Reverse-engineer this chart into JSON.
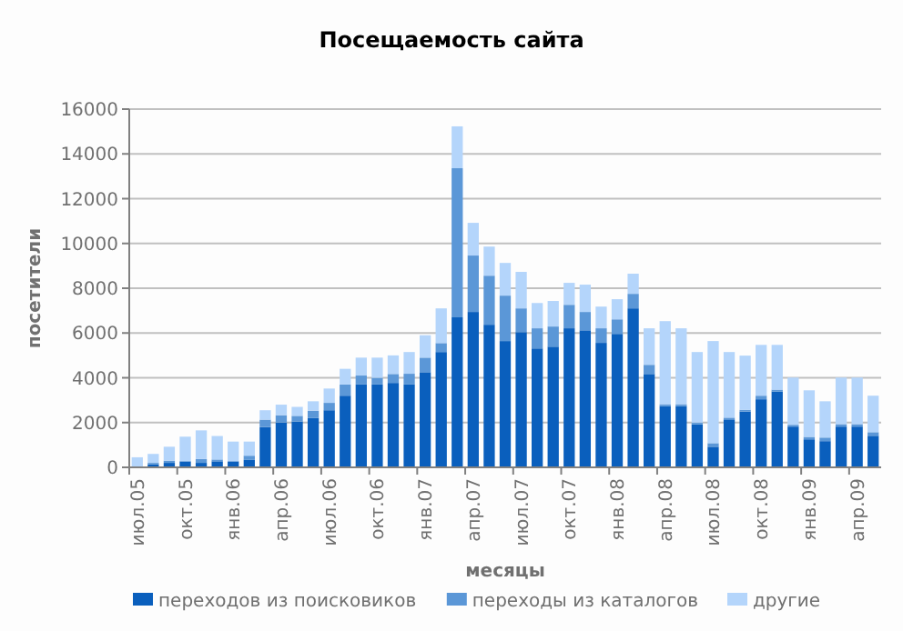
{
  "chart_data": {
    "type": "bar",
    "title": "Посещаемость сайта",
    "xlabel": "месяцы",
    "ylabel": "посетители",
    "categories": [
      "июл.05",
      null,
      null,
      "окт.05",
      null,
      null,
      "янв.06",
      null,
      null,
      "апр.06",
      null,
      null,
      "июл.06",
      null,
      null,
      "окт.06",
      null,
      null,
      "янв.07",
      null,
      null,
      "апр.07",
      null,
      null,
      "июл.07",
      null,
      null,
      "окт.07",
      null,
      null,
      "янв.08",
      null,
      null,
      "апр.08",
      null,
      null,
      "июл.08",
      null,
      null,
      "окт.08",
      null,
      null,
      "янв.09",
      null,
      null,
      "апр.09",
      null
    ],
    "stacked": true,
    "ylim": [
      0,
      16000
    ],
    "yticks": [
      0,
      2000,
      4000,
      6000,
      8000,
      10000,
      12000,
      14000,
      16000
    ],
    "grid": "y",
    "legend": "bottom",
    "series": [
      {
        "name": "переходов из поисковиков",
        "color": "#0a5fbd",
        "values": [
          0,
          130,
          200,
          270,
          200,
          270,
          270,
          330,
          1800,
          2000,
          2050,
          2200,
          2550,
          3200,
          3700,
          3700,
          3770,
          3700,
          4250,
          5150,
          6700,
          6940,
          6370,
          5640,
          6040,
          5310,
          5390,
          6210,
          6120,
          5560,
          5960,
          7100,
          4170,
          2740,
          2740,
          1920,
          920,
          2140,
          2490,
          3040,
          3390,
          1820,
          1250,
          1170,
          1820,
          1820,
          1410
        ]
      },
      {
        "name": "переходы из каталогов",
        "color": "#5b97d7",
        "values": [
          0,
          70,
          100,
          0,
          170,
          80,
          0,
          190,
          330,
          330,
          250,
          330,
          330,
          500,
          400,
          300,
          400,
          480,
          650,
          400,
          6660,
          2520,
          2190,
          2030,
          1060,
          900,
          900,
          1050,
          820,
          650,
          650,
          650,
          410,
          80,
          80,
          80,
          160,
          80,
          80,
          160,
          80,
          80,
          110,
          160,
          110,
          110,
          160
        ]
      },
      {
        "name": "другие",
        "color": "#b4d5fb",
        "values": [
          450,
          400,
          620,
          1100,
          1280,
          1050,
          880,
          630,
          420,
          470,
          400,
          420,
          640,
          700,
          800,
          900,
          830,
          970,
          1000,
          1550,
          1870,
          1460,
          1300,
          1460,
          1630,
          1130,
          1140,
          980,
          1220,
          970,
          900,
          900,
          1630,
          3710,
          3390,
          3150,
          4560,
          2930,
          2420,
          2270,
          2000,
          2110,
          2080,
          1620,
          2080,
          2080,
          1630
        ]
      }
    ]
  }
}
